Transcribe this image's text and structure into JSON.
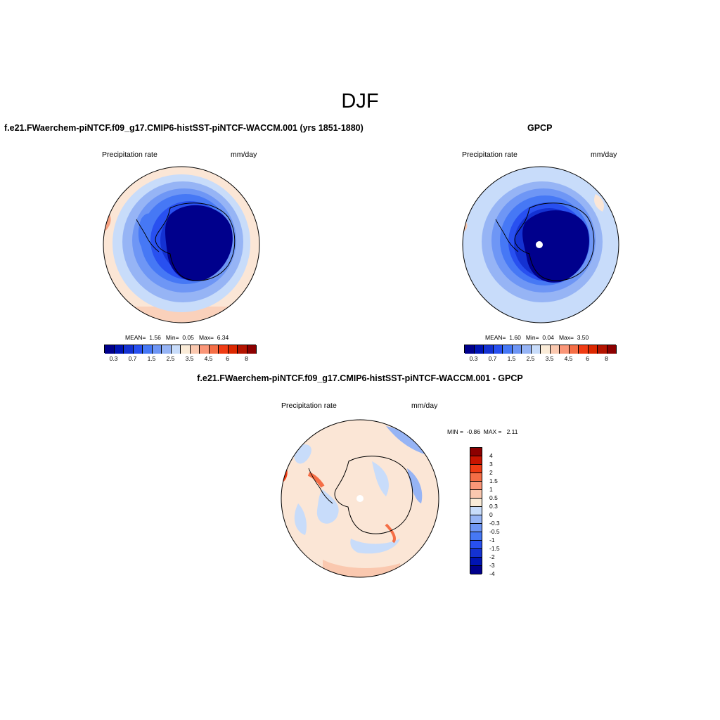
{
  "title": "DJF",
  "panels": [
    {
      "title": "f.e21.FWaerchem-piNTCF.f09_g17.CMIP6-histSST-piNTCF-WACCM.001 (yrs 1851-1880)",
      "left_label": "Precipitation rate",
      "right_label": "mm/day",
      "stats": {
        "mean_label": "MEAN=",
        "mean": "1.56",
        "min_label": "Min=",
        "min": "0.05",
        "max_label": "Max=",
        "max": "6.34"
      }
    },
    {
      "title": "GPCP",
      "left_label": "Precipitation rate",
      "right_label": "mm/day",
      "stats": {
        "mean_label": "MEAN=",
        "mean": "1.60",
        "min_label": "Min=",
        "min": "0.04",
        "max_label": "Max=",
        "max": "3.50"
      }
    },
    {
      "title": "f.e21.FWaerchem-piNTCF.f09_g17.CMIP6-histSST-piNTCF-WACCM.001 - GPCP",
      "left_label": "Precipitation rate",
      "right_label": "mm/day",
      "stats": {
        "min_label": "MIN =",
        "min": "-0.86",
        "max_label": "MAX =",
        "max": "2.11"
      }
    }
  ],
  "abs_colorbar": {
    "colors": [
      "#00008c",
      "#0014b4",
      "#1432d2",
      "#2850f0",
      "#4678f5",
      "#6e96f5",
      "#96b4f5",
      "#c8dcfa",
      "#faebd7",
      "#fac8af",
      "#fa9678",
      "#f56e46",
      "#f03c14",
      "#dc2800",
      "#b41400",
      "#8c0000"
    ],
    "labels": [
      "0.3",
      "0.7",
      "1.5",
      "2.5",
      "3.5",
      "4.5",
      "6",
      "8"
    ]
  },
  "diff_colorbar": {
    "colors": [
      "#8c0000",
      "#c81400",
      "#f03c14",
      "#f56e46",
      "#fa9678",
      "#fac8af",
      "#faebd7",
      "#c8dcfa",
      "#96b4f5",
      "#6e96f5",
      "#4678f5",
      "#2850f0",
      "#1432d2",
      "#0014b4",
      "#00008c"
    ],
    "labels": [
      "4",
      "3",
      "2",
      "1.5",
      "1",
      "0.5",
      "0.3",
      "0",
      "-0.3",
      "-0.5",
      "-1",
      "-1.5",
      "-2",
      "-3",
      "-4"
    ]
  }
}
